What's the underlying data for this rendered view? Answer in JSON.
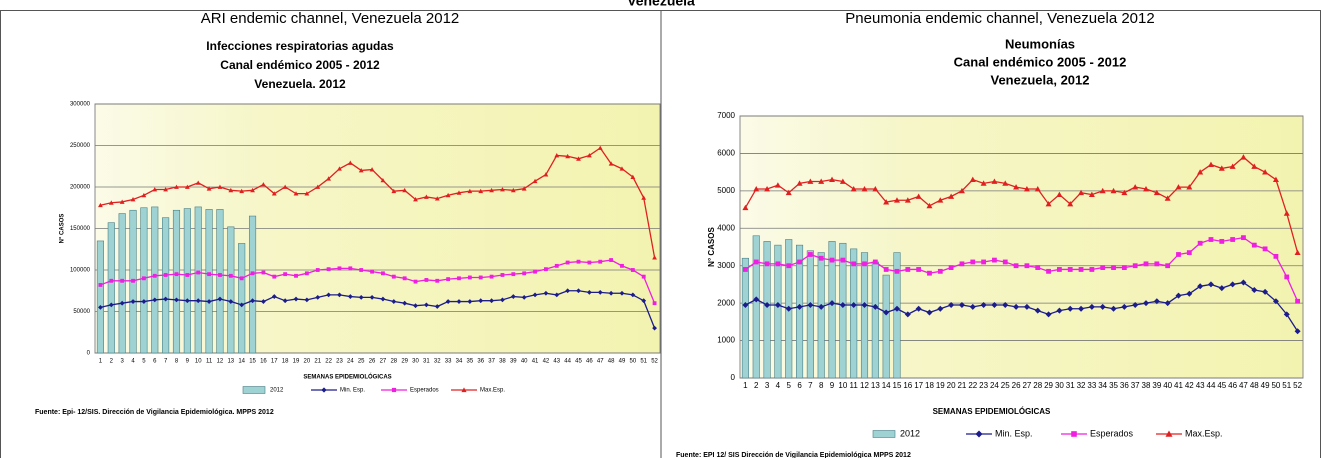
{
  "header": "Venezuela",
  "captions": [
    "ARI endemic channel, Venezuela 2012",
    "Pneumonia endemic channel, Venezuela 2012"
  ],
  "chart_data": [
    {
      "type": "combo",
      "title_lines": [
        "Infecciones respiratorias agudas",
        "Canal endémico 2005 - 2012",
        "Venezuela. 2012"
      ],
      "ylabel": "N° CASOS",
      "xlabel": "SEMANAS EPIDEMIOLÓGICAS",
      "source": "Fuente: Epi- 12/SIS. Dirección de Vigilancia Epidemiológica. MPPS 2012",
      "categories": [
        "1",
        "2",
        "3",
        "4",
        "5",
        "6",
        "7",
        "8",
        "9",
        "10",
        "11",
        "12",
        "13",
        "14",
        "15",
        "16",
        "17",
        "18",
        "19",
        "20",
        "21",
        "22",
        "23",
        "24",
        "25",
        "26",
        "27",
        "28",
        "29",
        "30",
        "31",
        "32",
        "33",
        "34",
        "35",
        "36",
        "37",
        "38",
        "39",
        "40",
        "41",
        "42",
        "43",
        "44",
        "45",
        "46",
        "47",
        "48",
        "49",
        "50",
        "51",
        "52"
      ],
      "ylim": [
        0,
        300000
      ],
      "yticks": [
        0,
        50000,
        100000,
        150000,
        200000,
        250000,
        300000
      ],
      "grid": true,
      "legend": "bottom",
      "series": [
        {
          "name": "2012",
          "style": "bar",
          "color": "#9fd3d3",
          "values": [
            135000,
            157000,
            168000,
            172000,
            175000,
            176000,
            163000,
            172000,
            174000,
            176000,
            173000,
            173000,
            152000,
            132000,
            165000,
            null,
            null,
            null,
            null,
            null,
            null,
            null,
            null,
            null,
            null,
            null,
            null,
            null,
            null,
            null,
            null,
            null,
            null,
            null,
            null,
            null,
            null,
            null,
            null,
            null,
            null,
            null,
            null,
            null,
            null,
            null,
            null,
            null,
            null,
            null,
            null,
            null
          ]
        },
        {
          "name": "Min. Esp.",
          "style": "line",
          "marker": "diamond",
          "color": "#1c1c8c",
          "values": [
            55000,
            58000,
            60000,
            62000,
            62000,
            64000,
            65000,
            64000,
            63000,
            63000,
            62000,
            65000,
            62000,
            58000,
            63000,
            62000,
            68000,
            63000,
            65000,
            64000,
            67000,
            70000,
            70000,
            68000,
            67000,
            67000,
            65000,
            62000,
            60000,
            57000,
            58000,
            56000,
            62000,
            62000,
            62000,
            63000,
            63000,
            64000,
            68000,
            67000,
            70000,
            72000,
            70000,
            75000,
            75000,
            73000,
            73000,
            72000,
            72000,
            70000,
            63000,
            30000
          ]
        },
        {
          "name": "Esperados",
          "style": "line",
          "marker": "square",
          "color": "#f01ee0",
          "values": [
            82000,
            87000,
            87000,
            87000,
            90000,
            93000,
            94000,
            95000,
            94000,
            97000,
            95000,
            94000,
            93000,
            90000,
            96000,
            97000,
            92000,
            95000,
            93000,
            96000,
            100000,
            101000,
            102000,
            102000,
            100000,
            98000,
            96000,
            92000,
            90000,
            86000,
            88000,
            87000,
            89000,
            90000,
            91000,
            91000,
            92000,
            94000,
            95000,
            96000,
            98000,
            101000,
            105000,
            109000,
            110000,
            109000,
            110000,
            112000,
            105000,
            100000,
            92000,
            60000
          ]
        },
        {
          "name": "Max.Esp.",
          "style": "line",
          "marker": "triangle",
          "color": "#e02020",
          "values": [
            178000,
            181000,
            182000,
            185000,
            190000,
            197000,
            197000,
            200000,
            200000,
            205000,
            198000,
            200000,
            196000,
            195000,
            196000,
            203000,
            192000,
            200000,
            192000,
            192000,
            200000,
            210000,
            222000,
            229000,
            220000,
            221000,
            208000,
            195000,
            196000,
            185000,
            188000,
            186000,
            190000,
            193000,
            195000,
            195000,
            196000,
            197000,
            196000,
            198000,
            207000,
            215000,
            238000,
            237000,
            234000,
            238000,
            247000,
            228000,
            222000,
            212000,
            187000,
            115000
          ]
        }
      ]
    },
    {
      "type": "combo",
      "title_lines": [
        "Neumonías",
        "Canal endémico 2005 - 2012",
        "Venezuela, 2012"
      ],
      "ylabel": "N° CASOS",
      "xlabel": "SEMANAS EPIDEMIOLÓGICAS",
      "source": "Fuente: EPI 12/ SIS Dirección de Vigilancia Epidemiológica MPPS 2012",
      "categories": [
        "1",
        "2",
        "3",
        "4",
        "5",
        "6",
        "7",
        "8",
        "9",
        "10",
        "11",
        "12",
        "13",
        "14",
        "15",
        "16",
        "17",
        "18",
        "19",
        "20",
        "21",
        "22",
        "23",
        "24",
        "25",
        "26",
        "27",
        "28",
        "29",
        "30",
        "31",
        "32",
        "33",
        "34",
        "35",
        "36",
        "37",
        "38",
        "39",
        "40",
        "41",
        "42",
        "43",
        "44",
        "45",
        "46",
        "47",
        "48",
        "49",
        "50",
        "51",
        "52"
      ],
      "ylim": [
        0,
        7000
      ],
      "yticks": [
        0,
        1000,
        2000,
        3000,
        4000,
        5000,
        6000,
        7000
      ],
      "grid": true,
      "legend": "bottom",
      "series": [
        {
          "name": "2012",
          "style": "bar",
          "color": "#9fd3d3",
          "values": [
            3200,
            3800,
            3650,
            3550,
            3700,
            3550,
            3400,
            3350,
            3650,
            3600,
            3450,
            3350,
            3100,
            2750,
            3350,
            null,
            null,
            null,
            null,
            null,
            null,
            null,
            null,
            null,
            null,
            null,
            null,
            null,
            null,
            null,
            null,
            null,
            null,
            null,
            null,
            null,
            null,
            null,
            null,
            null,
            null,
            null,
            null,
            null,
            null,
            null,
            null,
            null,
            null,
            null,
            null,
            null
          ]
        },
        {
          "name": "Min. Esp.",
          "style": "line",
          "marker": "diamond",
          "color": "#1c1c8c",
          "values": [
            1950,
            2100,
            1950,
            1950,
            1850,
            1900,
            1950,
            1900,
            2000,
            1950,
            1950,
            1950,
            1900,
            1750,
            1850,
            1700,
            1850,
            1750,
            1850,
            1950,
            1950,
            1900,
            1950,
            1950,
            1950,
            1900,
            1900,
            1800,
            1700,
            1800,
            1850,
            1850,
            1900,
            1900,
            1850,
            1900,
            1950,
            2000,
            2050,
            2000,
            2200,
            2250,
            2450,
            2500,
            2400,
            2500,
            2550,
            2350,
            2300,
            2050,
            1700,
            1250
          ]
        },
        {
          "name": "Esperados",
          "style": "line",
          "marker": "square",
          "color": "#f01ee0",
          "values": [
            2900,
            3100,
            3050,
            3050,
            3000,
            3100,
            3300,
            3200,
            3150,
            3150,
            3050,
            3050,
            3100,
            2900,
            2850,
            2900,
            2900,
            2800,
            2850,
            2950,
            3050,
            3100,
            3100,
            3150,
            3100,
            3000,
            3000,
            2950,
            2850,
            2900,
            2900,
            2900,
            2900,
            2950,
            2950,
            2950,
            3000,
            3050,
            3050,
            3000,
            3300,
            3350,
            3600,
            3700,
            3650,
            3700,
            3750,
            3550,
            3450,
            3250,
            2700,
            2050
          ]
        },
        {
          "name": "Max.Esp.",
          "style": "line",
          "marker": "triangle",
          "color": "#e02020",
          "values": [
            4550,
            5050,
            5050,
            5150,
            4950,
            5200,
            5250,
            5250,
            5300,
            5250,
            5050,
            5050,
            5050,
            4700,
            4750,
            4750,
            4850,
            4600,
            4750,
            4850,
            5000,
            5300,
            5200,
            5250,
            5200,
            5100,
            5050,
            5050,
            4650,
            4900,
            4650,
            4950,
            4900,
            5000,
            5000,
            4950,
            5100,
            5050,
            4950,
            4800,
            5100,
            5100,
            5500,
            5700,
            5600,
            5650,
            5900,
            5650,
            5500,
            5300,
            4400,
            3350
          ]
        }
      ]
    }
  ]
}
